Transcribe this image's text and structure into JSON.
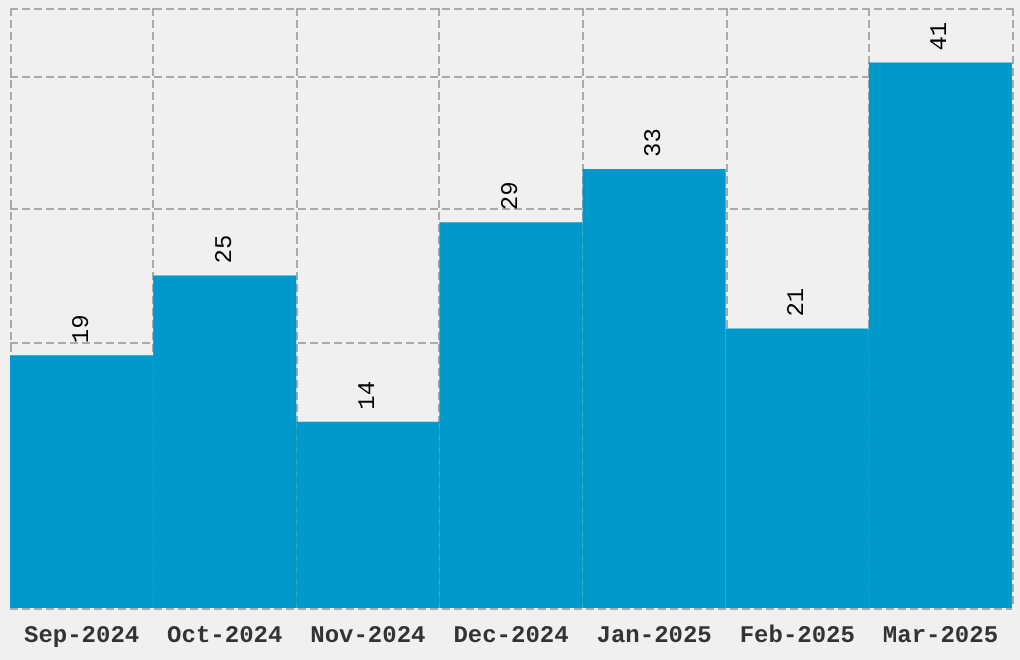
{
  "chart_data": {
    "type": "bar",
    "categories": [
      "Sep-2024",
      "Oct-2024",
      "Nov-2024",
      "Dec-2024",
      "Jan-2025",
      "Feb-2025",
      "Mar-2025"
    ],
    "values": [
      19,
      25,
      14,
      29,
      33,
      21,
      41
    ],
    "color": "#0099cc",
    "data_labels": true,
    "grid": true
  }
}
